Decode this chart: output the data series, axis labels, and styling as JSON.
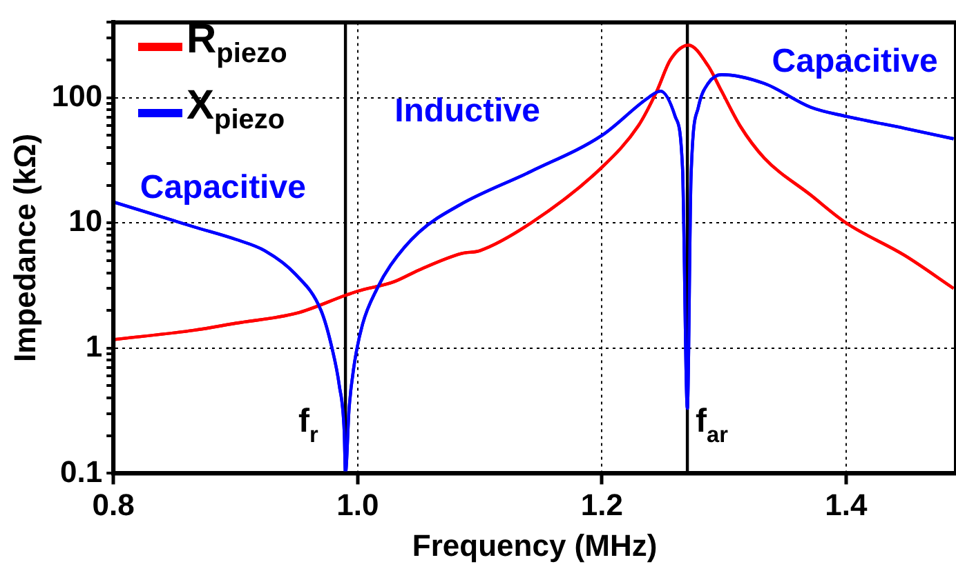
{
  "chart_data": {
    "type": "line",
    "xlabel": "Frequency (MHz)",
    "ylabel": "Impedance (kΩ)",
    "xlim": [
      0.8,
      1.49
    ],
    "xticks": [
      0.8,
      {
        "value": 1.0,
        "label": "1.0"
      },
      1.2,
      1.4
    ],
    "ylim": [
      0.1,
      400
    ],
    "yticks": [
      0.1,
      {
        "value": 0.2,
        "label": null
      },
      {
        "value": 0.3,
        "label": null
      },
      {
        "value": 0.4,
        "label": null
      },
      {
        "value": 0.5,
        "label": null
      },
      {
        "value": 0.6,
        "label": null
      },
      {
        "value": 0.7,
        "label": null
      },
      {
        "value": 0.8,
        "label": null
      },
      {
        "value": 0.9,
        "label": null
      },
      1,
      {
        "value": 2,
        "label": null
      },
      {
        "value": 3,
        "label": null
      },
      {
        "value": 4,
        "label": null
      },
      {
        "value": 5,
        "label": null
      },
      {
        "value": 6,
        "label": null
      },
      {
        "value": 7,
        "label": null
      },
      {
        "value": 8,
        "label": null
      },
      {
        "value": 9,
        "label": null
      },
      10,
      {
        "value": 20,
        "label": null
      },
      {
        "value": 30,
        "label": null
      },
      {
        "value": 40,
        "label": null
      },
      {
        "value": 50,
        "label": null
      },
      {
        "value": 60,
        "label": null
      },
      {
        "value": 70,
        "label": null
      },
      {
        "value": 80,
        "label": null
      },
      {
        "value": 90,
        "label": null
      },
      100,
      {
        "value": 200,
        "label": null
      },
      {
        "value": 300,
        "label": null
      },
      {
        "value": 400,
        "label": null
      }
    ],
    "log": "y",
    "grid": true,
    "legend": "top left",
    "marker": "none",
    "line_style": "solid",
    "series": [
      {
        "name": "R$_{piezo}$",
        "color": "#ff0000",
        "x": [
          0.8,
          0.866,
          0.9,
          0.95,
          0.99,
          1.0,
          1.03,
          1.05,
          1.085,
          1.1,
          1.142,
          1.2,
          1.23,
          1.245,
          1.256,
          1.271,
          1.287,
          1.298,
          1.313,
          1.333,
          1.371,
          1.4,
          1.448,
          1.488
        ],
        "values": [
          1.17,
          1.39,
          1.58,
          1.9,
          2.64,
          2.85,
          3.4,
          4.2,
          5.7,
          6.0,
          10,
          27.8,
          60,
          113,
          200,
          263,
          180,
          113,
          60,
          33,
          16.7,
          10,
          5.5,
          3.0
        ]
      },
      {
        "name": "X$_{piezo}$",
        "color": "#0000ff",
        "x": [
          0.8,
          0.866,
          0.9,
          0.924,
          0.949,
          0.97,
          0.979,
          0.985,
          0.989,
          0.99,
          0.993,
          0.997,
          1.004,
          1.016,
          1.027,
          1.05,
          1.084,
          1.142,
          1.2,
          1.238,
          1.248,
          1.26,
          1.266,
          1.27,
          1.273,
          1.279,
          1.287,
          1.298,
          1.333,
          1.371,
          1.4,
          1.448,
          1.488
        ],
        "values": [
          14.7,
          9.3,
          7.4,
          6.0,
          3.9,
          2.0,
          1.0,
          0.5,
          0.215,
          0.1,
          0.33,
          0.72,
          1.55,
          3.0,
          4.6,
          8.4,
          14,
          25.8,
          50,
          100,
          113,
          71,
          28,
          0.33,
          23,
          84,
          130,
          153,
          130,
          84,
          71,
          57,
          47
        ]
      }
    ],
    "ref_lines": [
      {
        "axis": "x",
        "value": 0.99,
        "label": "f$_{r}$",
        "color": "#000000"
      },
      {
        "axis": "x",
        "value": 1.27,
        "label": "f$_{ar}$",
        "color": "#000000"
      }
    ],
    "annotations": [
      "Capacitive",
      "Inductive",
      "Capacitive"
    ]
  }
}
